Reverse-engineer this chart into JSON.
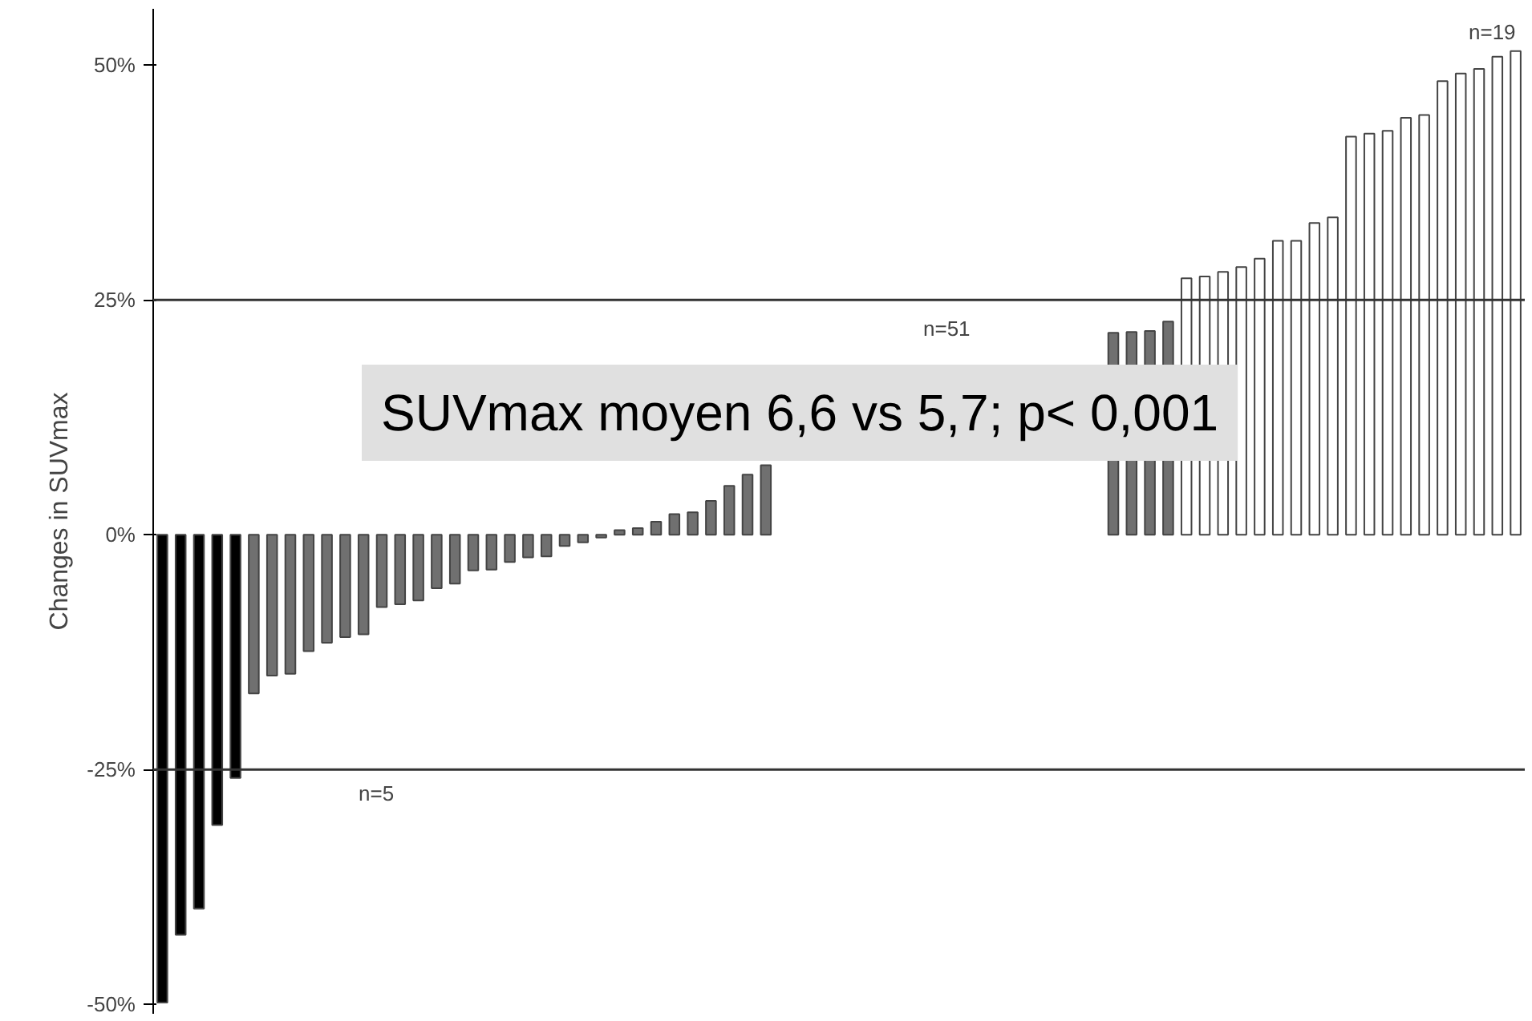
{
  "chart_data": {
    "type": "bar",
    "ylabel": "Changes in SUVmax",
    "categories": [
      null,
      null,
      null,
      null,
      null,
      null,
      null,
      null,
      null,
      null,
      null,
      null,
      null,
      null,
      null,
      null,
      null,
      null,
      null,
      null,
      null,
      null,
      null,
      null,
      null,
      null,
      null,
      null,
      null,
      null,
      null,
      null,
      null,
      null,
      null,
      null,
      null,
      null,
      null,
      null,
      null,
      null,
      null,
      null,
      null,
      null,
      null,
      null,
      null,
      null,
      null,
      null,
      null,
      null,
      null,
      null,
      null,
      null,
      null,
      null,
      null,
      null,
      null,
      null,
      null,
      null,
      null,
      null,
      null,
      null,
      null,
      null,
      null,
      null,
      null
    ],
    "values": [
      -49.8,
      -42.6,
      -39.8,
      -30.9,
      -25.9,
      -16.9,
      -15.0,
      -14.8,
      -12.4,
      -11.5,
      -10.9,
      -10.6,
      -7.7,
      -7.4,
      -7.0,
      -5.7,
      -5.2,
      -3.8,
      -3.7,
      -2.9,
      -2.4,
      -2.3,
      -1.2,
      -0.8,
      -0.3,
      0.5,
      0.7,
      1.4,
      2.2,
      2.4,
      3.6,
      5.2,
      6.4,
      7.4,
      null,
      null,
      null,
      null,
      null,
      null,
      null,
      null,
      null,
      null,
      null,
      null,
      null,
      null,
      null,
      null,
      null,
      null,
      21.5,
      21.6,
      21.7,
      22.7,
      27.3,
      27.5,
      28.0,
      28.5,
      29.4,
      31.3,
      31.3,
      33.2,
      33.8,
      42.4,
      42.7,
      43.0,
      44.4,
      44.7,
      48.3,
      49.1,
      49.6,
      50.9,
      51.5
    ],
    "colors": [
      "#000000",
      "#000000",
      "#000000",
      "#000000",
      "#000000",
      "#707070",
      "#707070",
      "#707070",
      "#707070",
      "#707070",
      "#707070",
      "#707070",
      "#707070",
      "#707070",
      "#707070",
      "#707070",
      "#707070",
      "#707070",
      "#707070",
      "#707070",
      "#707070",
      "#707070",
      "#707070",
      "#707070",
      "#707070",
      "#707070",
      "#707070",
      "#707070",
      "#707070",
      "#707070",
      "#707070",
      "#707070",
      "#707070",
      "#707070",
      "#707070",
      "#707070",
      "#707070",
      "#707070",
      "#707070",
      "#707070",
      "#707070",
      "#707070",
      "#707070",
      "#707070",
      "#707070",
      "#707070",
      "#707070",
      "#707070",
      "#707070",
      "#707070",
      "#707070",
      "#707070",
      "#707070",
      "#707070",
      "#707070",
      "#707070",
      "#ffffff",
      "#ffffff",
      "#ffffff",
      "#ffffff",
      "#ffffff",
      "#ffffff",
      "#ffffff",
      "#ffffff",
      "#ffffff",
      "#ffffff",
      "#ffffff",
      "#ffffff",
      "#ffffff",
      "#ffffff",
      "#ffffff",
      "#ffffff",
      "#ffffff",
      "#ffffff",
      "#ffffff"
    ],
    "ylim": [
      -51,
      56
    ],
    "yticks": [
      {
        "value": -50,
        "label": "-50%"
      },
      {
        "value": -25,
        "label": "-25%"
      },
      {
        "value": 0,
        "label": "0%"
      },
      {
        "value": 25,
        "label": "25%"
      },
      {
        "value": 50,
        "label": "50%"
      }
    ],
    "tick_labels": "y",
    "grid": false,
    "ref_lines": [
      {
        "axis": "y",
        "value": 25,
        "color": "#333333"
      },
      {
        "axis": "y",
        "value": -25,
        "color": "#333333"
      }
    ],
    "annotations": [
      "n=5",
      "n=51",
      "n=19",
      "SUVmax moyen 6,6 vs 5,7; p< 0,001"
    ]
  }
}
